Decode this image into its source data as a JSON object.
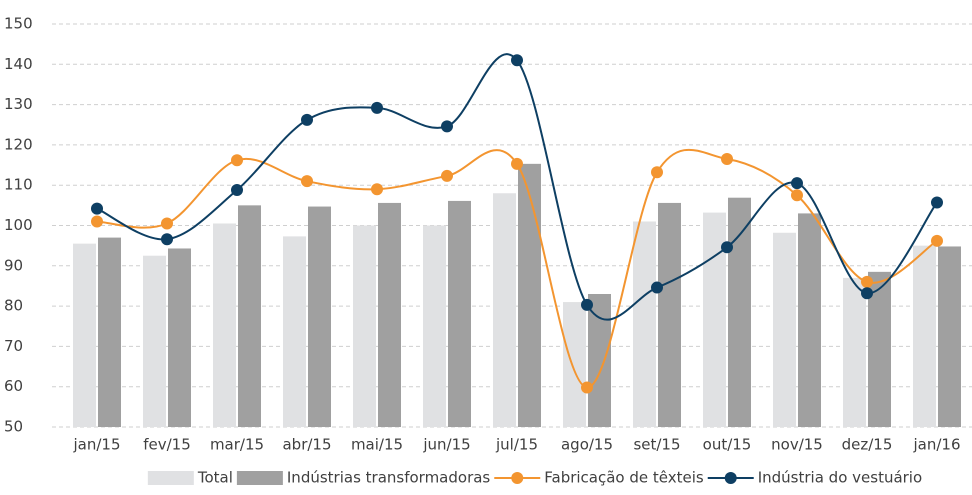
{
  "chart_data": {
    "type": "bar-line",
    "categories": [
      "jan/15",
      "fev/15",
      "mar/15",
      "abr/15",
      "mai/15",
      "jun/15",
      "jul/15",
      "ago/15",
      "set/15",
      "out/15",
      "nov/15",
      "dez/15",
      "jan/16"
    ],
    "series": [
      {
        "name": "Total",
        "kind": "bar",
        "color": "#e0e1e3",
        "values": [
          95.5,
          92.5,
          100.5,
          97.3,
          100,
          100,
          108,
          81,
          101,
          103.2,
          98.2,
          87,
          95
        ]
      },
      {
        "name": "Indústrias transformadoras",
        "kind": "bar",
        "color": "#a0a0a0",
        "values": [
          97,
          94.3,
          105,
          104.7,
          105.6,
          106.1,
          115.3,
          83,
          105.6,
          106.9,
          103,
          88.5,
          94.8
        ]
      },
      {
        "name": "Fabricação de têxteis",
        "kind": "line",
        "color": "#f39530",
        "values": [
          101,
          100.5,
          116.2,
          111,
          109,
          112.3,
          115.3,
          59.8,
          113.2,
          116.5,
          107.5,
          86,
          96.2
        ]
      },
      {
        "name": "Indústria do vestuário",
        "kind": "line",
        "color": "#0e3f63",
        "values": [
          104.2,
          96.6,
          108.8,
          126.2,
          129.2,
          124.6,
          141,
          80.3,
          84.6,
          94.6,
          110.5,
          83.2,
          105.7
        ]
      }
    ],
    "ylim": [
      50,
      150
    ],
    "yticks": [
      50,
      60,
      70,
      80,
      90,
      100,
      110,
      120,
      130,
      140,
      150
    ],
    "grid": true,
    "legend": "bottom"
  }
}
